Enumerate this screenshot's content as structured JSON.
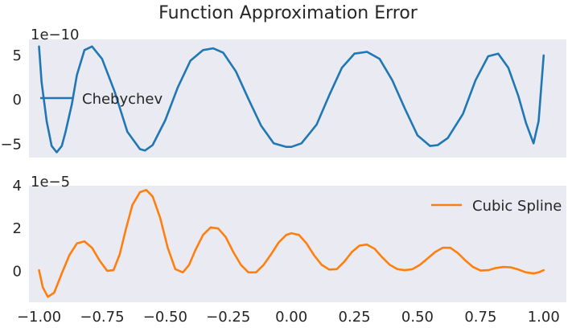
{
  "figure": {
    "title": "Function Approximation Error",
    "background": "#ffffff",
    "axes_bg": "#eaeaf2"
  },
  "chart_data": [
    {
      "type": "line",
      "title": "",
      "xlabel": "",
      "ylabel": "",
      "offset_label": "1e−10",
      "xlim": [
        -1.04,
        1.09
      ],
      "ylim": [
        -6.5,
        6.8
      ],
      "yticks": [
        -5,
        0,
        5
      ],
      "ytick_labels": [
        "−5",
        "0",
        "5"
      ],
      "grid": false,
      "legend_position": "center-left",
      "series": [
        {
          "name": "Chebychev",
          "color": "#1f77b4",
          "x": [
            -1.0,
            -0.99,
            -0.97,
            -0.95,
            -0.93,
            -0.91,
            -0.895,
            -0.87,
            -0.85,
            -0.82,
            -0.79,
            -0.75,
            -0.7,
            -0.65,
            -0.6,
            -0.58,
            -0.55,
            -0.5,
            -0.45,
            -0.4,
            -0.35,
            -0.31,
            -0.27,
            -0.22,
            -0.17,
            -0.12,
            -0.07,
            -0.02,
            0.0,
            0.04,
            0.1,
            0.15,
            0.2,
            0.25,
            0.3,
            0.35,
            0.4,
            0.45,
            0.5,
            0.55,
            0.58,
            0.62,
            0.68,
            0.73,
            0.78,
            0.82,
            0.86,
            0.9,
            0.93,
            0.96,
            0.98,
            1.0
          ],
          "y": [
            6.0,
            2.0,
            -2.4,
            -5.2,
            -5.9,
            -5.2,
            -3.6,
            -0.5,
            2.8,
            5.6,
            6.0,
            4.6,
            0.9,
            -3.6,
            -5.55,
            -5.7,
            -5.1,
            -2.3,
            1.4,
            4.4,
            5.6,
            5.8,
            5.3,
            3.2,
            0.1,
            -2.9,
            -4.9,
            -5.3,
            -5.3,
            -4.9,
            -2.8,
            0.5,
            3.6,
            5.2,
            5.4,
            4.6,
            2.2,
            -1.0,
            -4.0,
            -5.2,
            -5.1,
            -4.3,
            -1.6,
            2.2,
            4.9,
            5.2,
            3.6,
            0.4,
            -2.6,
            -4.9,
            -2.4,
            5.0
          ]
        }
      ]
    },
    {
      "type": "line",
      "title": "",
      "xlabel": "",
      "ylabel": "",
      "offset_label": "1e−5",
      "xlim": [
        -1.04,
        1.09
      ],
      "ylim": [
        -1.45,
        4.0
      ],
      "yticks": [
        0,
        2,
        4
      ],
      "ytick_labels": [
        "0",
        "2",
        "4"
      ],
      "xticks": [
        -1.0,
        -0.75,
        -0.5,
        -0.25,
        0.0,
        0.25,
        0.5,
        0.75,
        1.0
      ],
      "xtick_labels": [
        "−1.00",
        "−0.75",
        "−0.50",
        "−0.25",
        "0.00",
        "0.25",
        "0.50",
        "0.75",
        "1.00"
      ],
      "grid": false,
      "legend_position": "top-right",
      "series": [
        {
          "name": "Cubic Spline",
          "color": "#ff7f0e",
          "x": [
            -1.0,
            -0.985,
            -0.965,
            -0.94,
            -0.91,
            -0.88,
            -0.85,
            -0.82,
            -0.79,
            -0.76,
            -0.73,
            -0.705,
            -0.68,
            -0.655,
            -0.63,
            -0.6,
            -0.575,
            -0.55,
            -0.52,
            -0.49,
            -0.46,
            -0.43,
            -0.405,
            -0.38,
            -0.35,
            -0.32,
            -0.29,
            -0.26,
            -0.23,
            -0.2,
            -0.17,
            -0.14,
            -0.11,
            -0.08,
            -0.05,
            -0.02,
            0.0,
            0.03,
            0.06,
            0.09,
            0.12,
            0.15,
            0.18,
            0.21,
            0.24,
            0.27,
            0.3,
            0.33,
            0.36,
            0.39,
            0.42,
            0.45,
            0.48,
            0.51,
            0.54,
            0.57,
            0.6,
            0.63,
            0.66,
            0.69,
            0.72,
            0.75,
            0.78,
            0.81,
            0.84,
            0.87,
            0.9,
            0.93,
            0.96,
            0.98,
            1.0
          ],
          "y": [
            0.05,
            -0.75,
            -1.2,
            -1.0,
            -0.1,
            0.75,
            1.3,
            1.4,
            1.1,
            0.5,
            0.02,
            0.05,
            0.8,
            2.0,
            3.1,
            3.7,
            3.8,
            3.5,
            2.5,
            1.1,
            0.1,
            -0.05,
            0.3,
            1.0,
            1.7,
            2.05,
            2.0,
            1.6,
            0.9,
            0.3,
            -0.05,
            -0.05,
            0.3,
            0.8,
            1.35,
            1.7,
            1.78,
            1.7,
            1.3,
            0.75,
            0.3,
            0.08,
            0.1,
            0.45,
            0.9,
            1.2,
            1.25,
            1.05,
            0.65,
            0.3,
            0.1,
            0.05,
            0.1,
            0.3,
            0.6,
            0.9,
            1.1,
            1.1,
            0.85,
            0.5,
            0.2,
            0.03,
            0.05,
            0.15,
            0.2,
            0.18,
            0.08,
            -0.05,
            -0.1,
            -0.05,
            0.05
          ]
        }
      ]
    }
  ]
}
